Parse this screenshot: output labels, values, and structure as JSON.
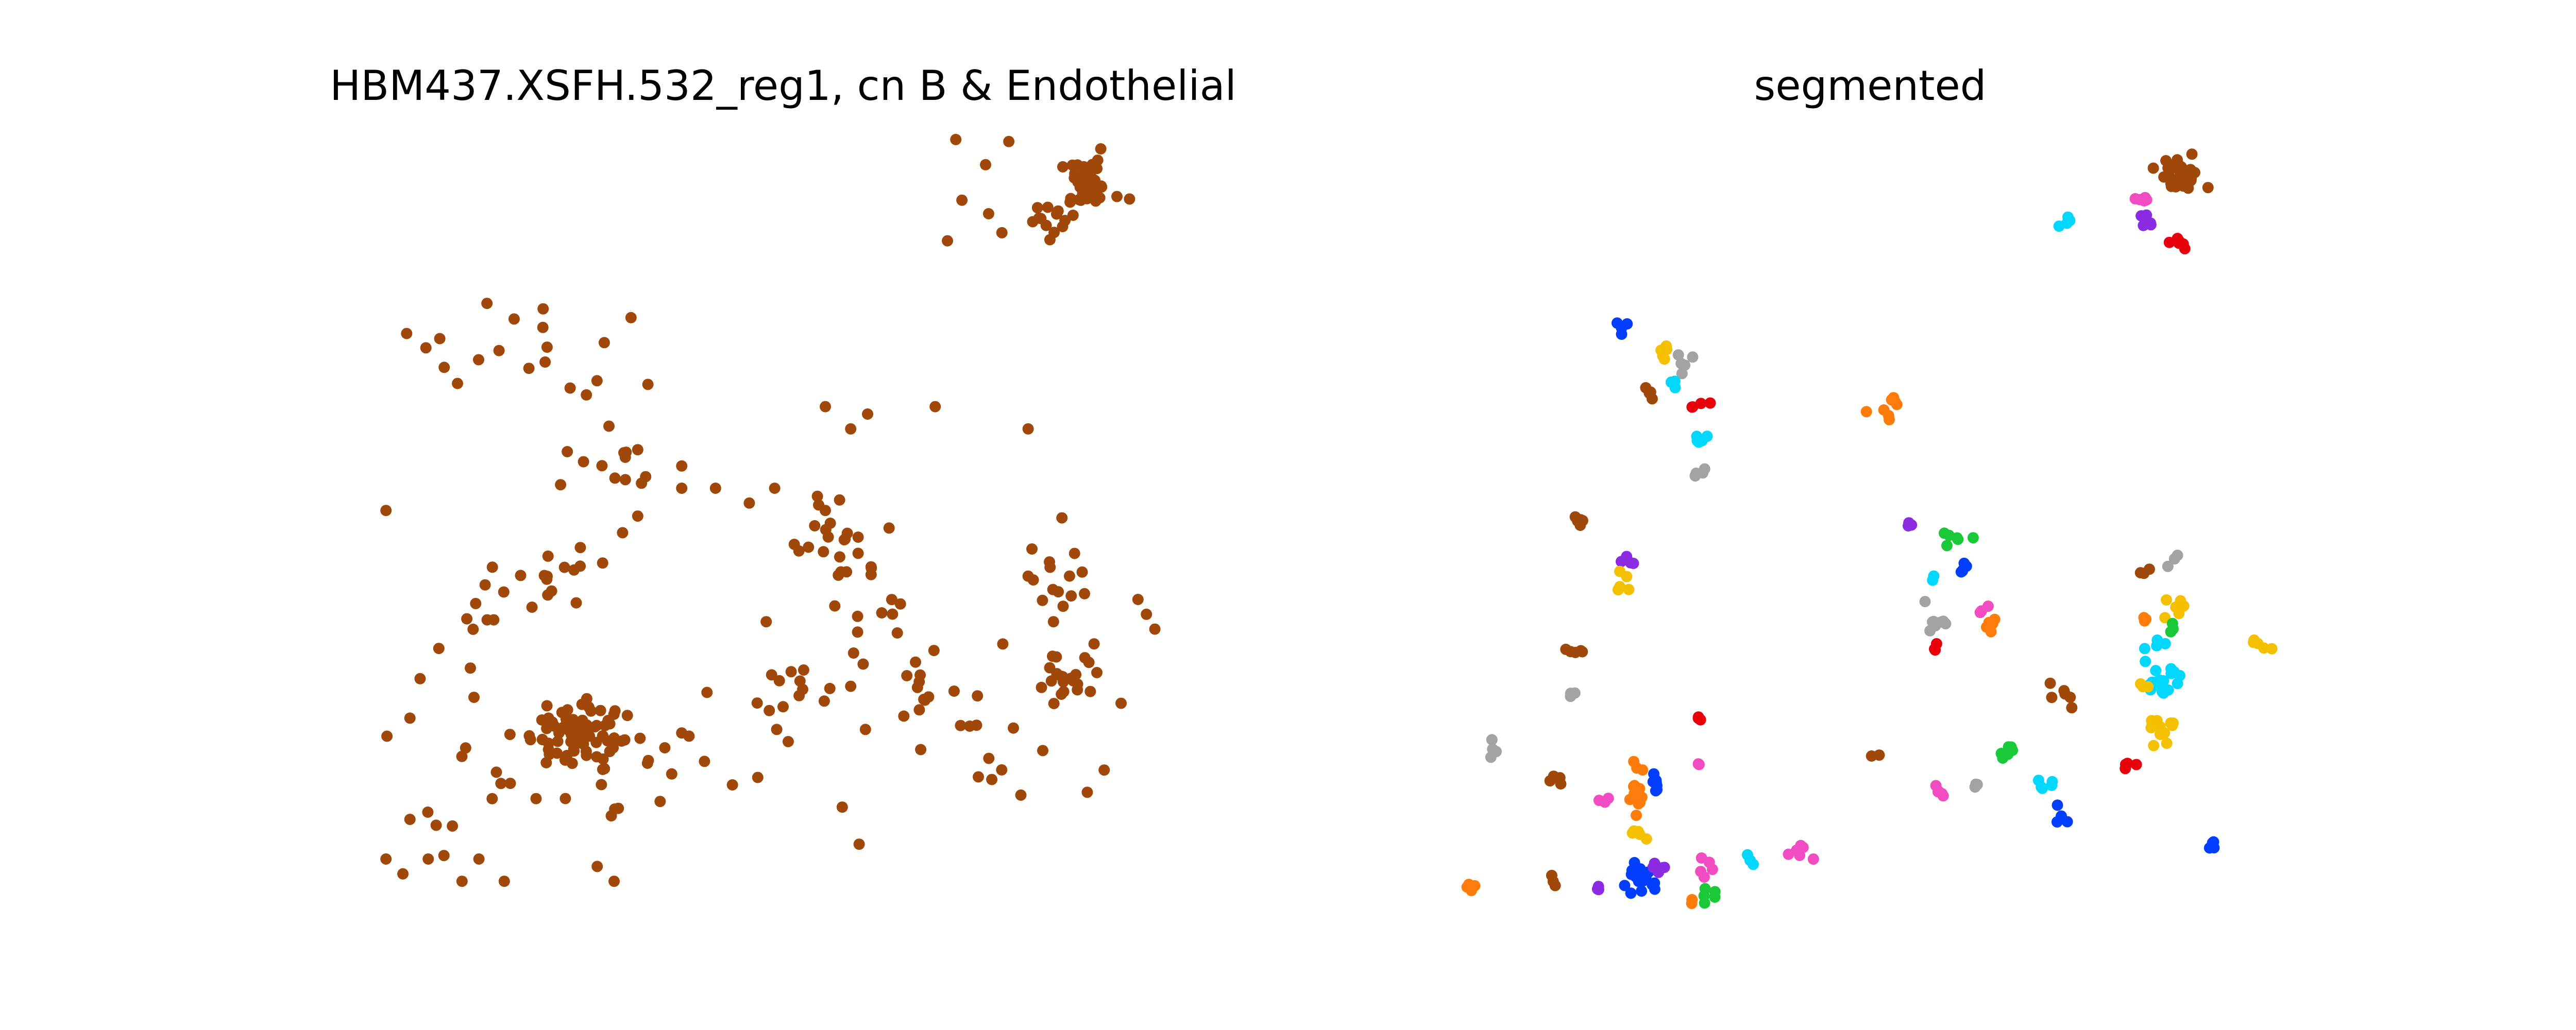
{
  "chart_data": [
    {
      "type": "scatter",
      "title": "HBM437.XSFH.532_reg1, cn B & Endothelial",
      "color": "#a0480a",
      "xlim": [
        0,
        100
      ],
      "ylim": [
        0,
        100
      ],
      "axes_visible": false,
      "clusters": [
        {
          "x": 86,
          "y": 96,
          "n": 40,
          "s": 1.6
        },
        {
          "x": 82,
          "y": 91,
          "n": 14,
          "s": 1.5
        },
        {
          "x": 75,
          "y": 95,
          "n": 8,
          "s": 4.0
        },
        {
          "x": 21,
          "y": 75,
          "n": 12,
          "s": 3.5
        },
        {
          "x": 11,
          "y": 72,
          "n": 6,
          "s": 3.0
        },
        {
          "x": 30,
          "y": 57,
          "n": 14,
          "s": 3.0
        },
        {
          "x": 22,
          "y": 42,
          "n": 14,
          "s": 2.5
        },
        {
          "x": 57,
          "y": 48,
          "n": 22,
          "s": 3.0
        },
        {
          "x": 54,
          "y": 28,
          "n": 18,
          "s": 4.0
        },
        {
          "x": 67,
          "y": 27,
          "n": 14,
          "s": 3.5
        },
        {
          "x": 84,
          "y": 30,
          "n": 22,
          "s": 2.0
        },
        {
          "x": 83,
          "y": 44,
          "n": 14,
          "s": 2.5
        },
        {
          "x": 25,
          "y": 22,
          "n": 70,
          "s": 2.5
        },
        {
          "x": 14,
          "y": 15,
          "n": 14,
          "s": 4.0
        },
        {
          "x": 31,
          "y": 17,
          "n": 18,
          "s": 4.0
        },
        {
          "x": 10,
          "y": 30,
          "n": 6,
          "s": 3.0
        },
        {
          "x": 15,
          "y": 38,
          "n": 6,
          "s": 2.0
        },
        {
          "x": 74,
          "y": 19,
          "n": 8,
          "s": 3.0
        },
        {
          "x": 61,
          "y": 40,
          "n": 10,
          "s": 3.0
        }
      ],
      "points": [
        [
          60,
          65
        ],
        [
          58,
          63
        ],
        [
          68,
          66
        ],
        [
          79,
          63
        ],
        [
          55,
          52
        ],
        [
          3,
          52
        ],
        [
          48,
          37
        ],
        [
          52,
          29
        ],
        [
          36,
          20
        ],
        [
          38,
          22
        ],
        [
          57,
          12
        ],
        [
          8,
          5
        ],
        [
          3,
          5
        ],
        [
          5,
          3
        ],
        [
          12,
          2
        ],
        [
          14,
          5
        ],
        [
          17,
          2
        ],
        [
          30,
          2
        ],
        [
          28,
          4
        ],
        [
          44,
          15
        ],
        [
          47,
          16
        ],
        [
          88,
          17
        ],
        [
          86,
          14
        ],
        [
          93,
          38
        ],
        [
          94,
          36
        ],
        [
          92,
          40
        ],
        [
          90,
          26
        ],
        [
          82,
          37
        ],
        [
          76,
          34
        ],
        [
          91,
          94
        ],
        [
          83,
          51
        ],
        [
          38,
          55
        ],
        [
          38,
          58
        ],
        [
          42,
          55
        ],
        [
          31,
          49
        ],
        [
          55,
          66
        ],
        [
          49,
          55
        ],
        [
          46,
          53
        ],
        [
          32,
          78
        ],
        [
          34,
          69
        ],
        [
          26,
          47
        ],
        [
          59,
          7
        ],
        [
          71,
          23
        ],
        [
          73,
          27
        ]
      ]
    },
    {
      "type": "scatter",
      "title": "segmented",
      "xlim": [
        0,
        100
      ],
      "ylim": [
        0,
        100
      ],
      "axes_visible": false,
      "palette": {
        "brown": "#a0480a",
        "orange": "#ff7c0a",
        "blue": "#023eff",
        "yellow": "#f5c000",
        "gray": "#a3a3a3",
        "cyan": "#00d7ff",
        "red": "#e8000b",
        "purple": "#8b2be2",
        "pink": "#f14cc1",
        "green": "#1ac938"
      },
      "segments": [
        {
          "color": "brown",
          "x": 86,
          "y": 97,
          "n": 40,
          "s": 1.3
        },
        {
          "color": "pink",
          "x": 82,
          "y": 94,
          "n": 5,
          "s": 0.5
        },
        {
          "color": "purple",
          "x": 82,
          "y": 91,
          "n": 6,
          "s": 0.5
        },
        {
          "color": "red",
          "x": 85,
          "y": 88,
          "n": 6,
          "s": 0.6
        },
        {
          "color": "cyan",
          "x": 73,
          "y": 91,
          "n": 4,
          "s": 0.5
        },
        {
          "color": "blue",
          "x": 20,
          "y": 77,
          "n": 5,
          "s": 0.5
        },
        {
          "color": "yellow",
          "x": 25,
          "y": 74,
          "n": 5,
          "s": 0.6
        },
        {
          "color": "gray",
          "x": 27,
          "y": 72,
          "n": 5,
          "s": 0.6
        },
        {
          "color": "brown",
          "x": 23,
          "y": 68,
          "n": 4,
          "s": 0.6
        },
        {
          "color": "cyan",
          "x": 26,
          "y": 69,
          "n": 3,
          "s": 0.4
        },
        {
          "color": "red",
          "x": 29,
          "y": 66,
          "n": 4,
          "s": 0.5
        },
        {
          "color": "orange",
          "x": 51,
          "y": 66,
          "n": 8,
          "s": 1.5
        },
        {
          "color": "cyan",
          "x": 29,
          "y": 61,
          "n": 5,
          "s": 0.6
        },
        {
          "color": "gray",
          "x": 29,
          "y": 57,
          "n": 4,
          "s": 0.6
        },
        {
          "color": "brown",
          "x": 15,
          "y": 51,
          "n": 5,
          "s": 0.7
        },
        {
          "color": "purple",
          "x": 21,
          "y": 45,
          "n": 4,
          "s": 0.5
        },
        {
          "color": "yellow",
          "x": 20,
          "y": 42,
          "n": 5,
          "s": 0.6
        },
        {
          "color": "purple",
          "x": 54,
          "y": 50,
          "n": 3,
          "s": 0.3
        },
        {
          "color": "green",
          "x": 59,
          "y": 48,
          "n": 6,
          "s": 1.0
        },
        {
          "color": "blue",
          "x": 60,
          "y": 44,
          "n": 5,
          "s": 0.6
        },
        {
          "color": "cyan",
          "x": 57,
          "y": 43,
          "n": 2,
          "s": 0.3
        },
        {
          "color": "gray",
          "x": 57,
          "y": 37,
          "n": 10,
          "s": 1.2
        },
        {
          "color": "pink",
          "x": 63,
          "y": 39,
          "n": 3,
          "s": 0.5
        },
        {
          "color": "orange",
          "x": 64,
          "y": 37,
          "n": 5,
          "s": 0.6
        },
        {
          "color": "red",
          "x": 57,
          "y": 33,
          "n": 3,
          "s": 0.5
        },
        {
          "color": "brown",
          "x": 82,
          "y": 44,
          "n": 3,
          "s": 0.5
        },
        {
          "color": "gray",
          "x": 85,
          "y": 45,
          "n": 3,
          "s": 0.5
        },
        {
          "color": "yellow",
          "x": 85,
          "y": 39,
          "n": 6,
          "s": 0.6
        },
        {
          "color": "orange",
          "x": 82,
          "y": 37,
          "n": 3,
          "s": 0.4
        },
        {
          "color": "green",
          "x": 85,
          "y": 36,
          "n": 3,
          "s": 0.4
        },
        {
          "color": "cyan",
          "x": 83,
          "y": 34,
          "n": 4,
          "s": 0.5
        },
        {
          "color": "yellow",
          "x": 96,
          "y": 34,
          "n": 5,
          "s": 0.6
        },
        {
          "color": "cyan",
          "x": 84,
          "y": 29,
          "n": 18,
          "s": 1.2
        },
        {
          "color": "yellow",
          "x": 84,
          "y": 23,
          "n": 12,
          "s": 0.9
        },
        {
          "color": "yellow",
          "x": 82,
          "y": 28,
          "n": 3,
          "s": 0.4
        },
        {
          "color": "red",
          "x": 80,
          "y": 18,
          "n": 4,
          "s": 0.5
        },
        {
          "color": "brown",
          "x": 72,
          "y": 27,
          "n": 6,
          "s": 0.9
        },
        {
          "color": "green",
          "x": 66,
          "y": 19,
          "n": 6,
          "s": 0.6
        },
        {
          "color": "cyan",
          "x": 70,
          "y": 15,
          "n": 5,
          "s": 0.6
        },
        {
          "color": "blue",
          "x": 72,
          "y": 11,
          "n": 4,
          "s": 0.6
        },
        {
          "color": "blue",
          "x": 90,
          "y": 7,
          "n": 4,
          "s": 0.4
        },
        {
          "color": "pink",
          "x": 58,
          "y": 14,
          "n": 5,
          "s": 0.6
        },
        {
          "color": "gray",
          "x": 62,
          "y": 15,
          "n": 3,
          "s": 0.4
        },
        {
          "color": "brown",
          "x": 50,
          "y": 19,
          "n": 2,
          "s": 0.3
        },
        {
          "color": "red",
          "x": 29,
          "y": 24,
          "n": 3,
          "s": 0.3
        },
        {
          "color": "pink",
          "x": 29,
          "y": 18,
          "n": 2,
          "s": 0.3
        },
        {
          "color": "gray",
          "x": 14,
          "y": 27,
          "n": 3,
          "s": 0.3
        },
        {
          "color": "brown",
          "x": 15,
          "y": 33,
          "n": 5,
          "s": 0.7
        },
        {
          "color": "gray",
          "x": 5,
          "y": 20,
          "n": 4,
          "s": 0.5
        },
        {
          "color": "brown",
          "x": 13,
          "y": 15,
          "n": 4,
          "s": 0.7
        },
        {
          "color": "orange",
          "x": 21,
          "y": 13,
          "n": 14,
          "s": 0.9
        },
        {
          "color": "pink",
          "x": 18,
          "y": 13,
          "n": 3,
          "s": 0.4
        },
        {
          "color": "orange",
          "x": 22,
          "y": 17,
          "n": 3,
          "s": 0.4
        },
        {
          "color": "blue",
          "x": 24,
          "y": 15,
          "n": 8,
          "s": 0.8
        },
        {
          "color": "yellow",
          "x": 22,
          "y": 8,
          "n": 5,
          "s": 0.7
        },
        {
          "color": "blue",
          "x": 22,
          "y": 2,
          "n": 20,
          "s": 0.9
        },
        {
          "color": "purple",
          "x": 24,
          "y": 4,
          "n": 5,
          "s": 0.6
        },
        {
          "color": "purple",
          "x": 17,
          "y": 1,
          "n": 3,
          "s": 0.3
        },
        {
          "color": "brown",
          "x": 12,
          "y": 2,
          "n": 3,
          "s": 0.3
        },
        {
          "color": "orange",
          "x": 2,
          "y": 1,
          "n": 4,
          "s": 0.4
        },
        {
          "color": "pink",
          "x": 30,
          "y": 4,
          "n": 5,
          "s": 0.6
        },
        {
          "color": "green",
          "x": 30,
          "y": 0,
          "n": 5,
          "s": 0.5
        },
        {
          "color": "orange",
          "x": 28,
          "y": -1,
          "n": 2,
          "s": 0.3
        },
        {
          "color": "cyan",
          "x": 35,
          "y": 5,
          "n": 3,
          "s": 0.4
        },
        {
          "color": "pink",
          "x": 41,
          "y": 6,
          "n": 6,
          "s": 1.0
        }
      ]
    }
  ]
}
